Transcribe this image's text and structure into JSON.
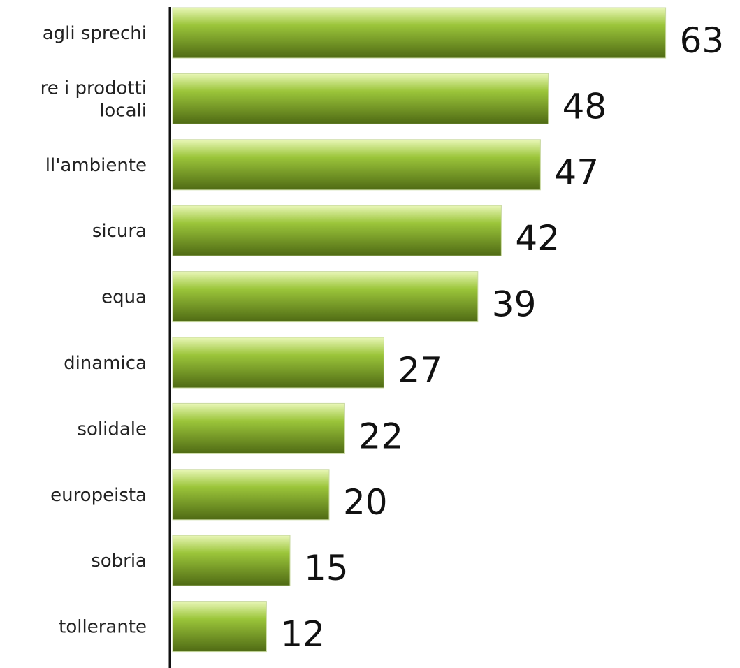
{
  "chart_data": {
    "type": "bar",
    "orientation": "horizontal",
    "categories": [
      "agli sprechi",
      "re i prodotti\nlocali",
      "ll'ambiente",
      "sicura",
      "equa",
      "dinamica",
      "solidale",
      "europeista",
      "sobria",
      "tollerante"
    ],
    "values": [
      63,
      48,
      47,
      42,
      39,
      27,
      22,
      20,
      15,
      12
    ],
    "color": "#9bc53a"
  }
}
